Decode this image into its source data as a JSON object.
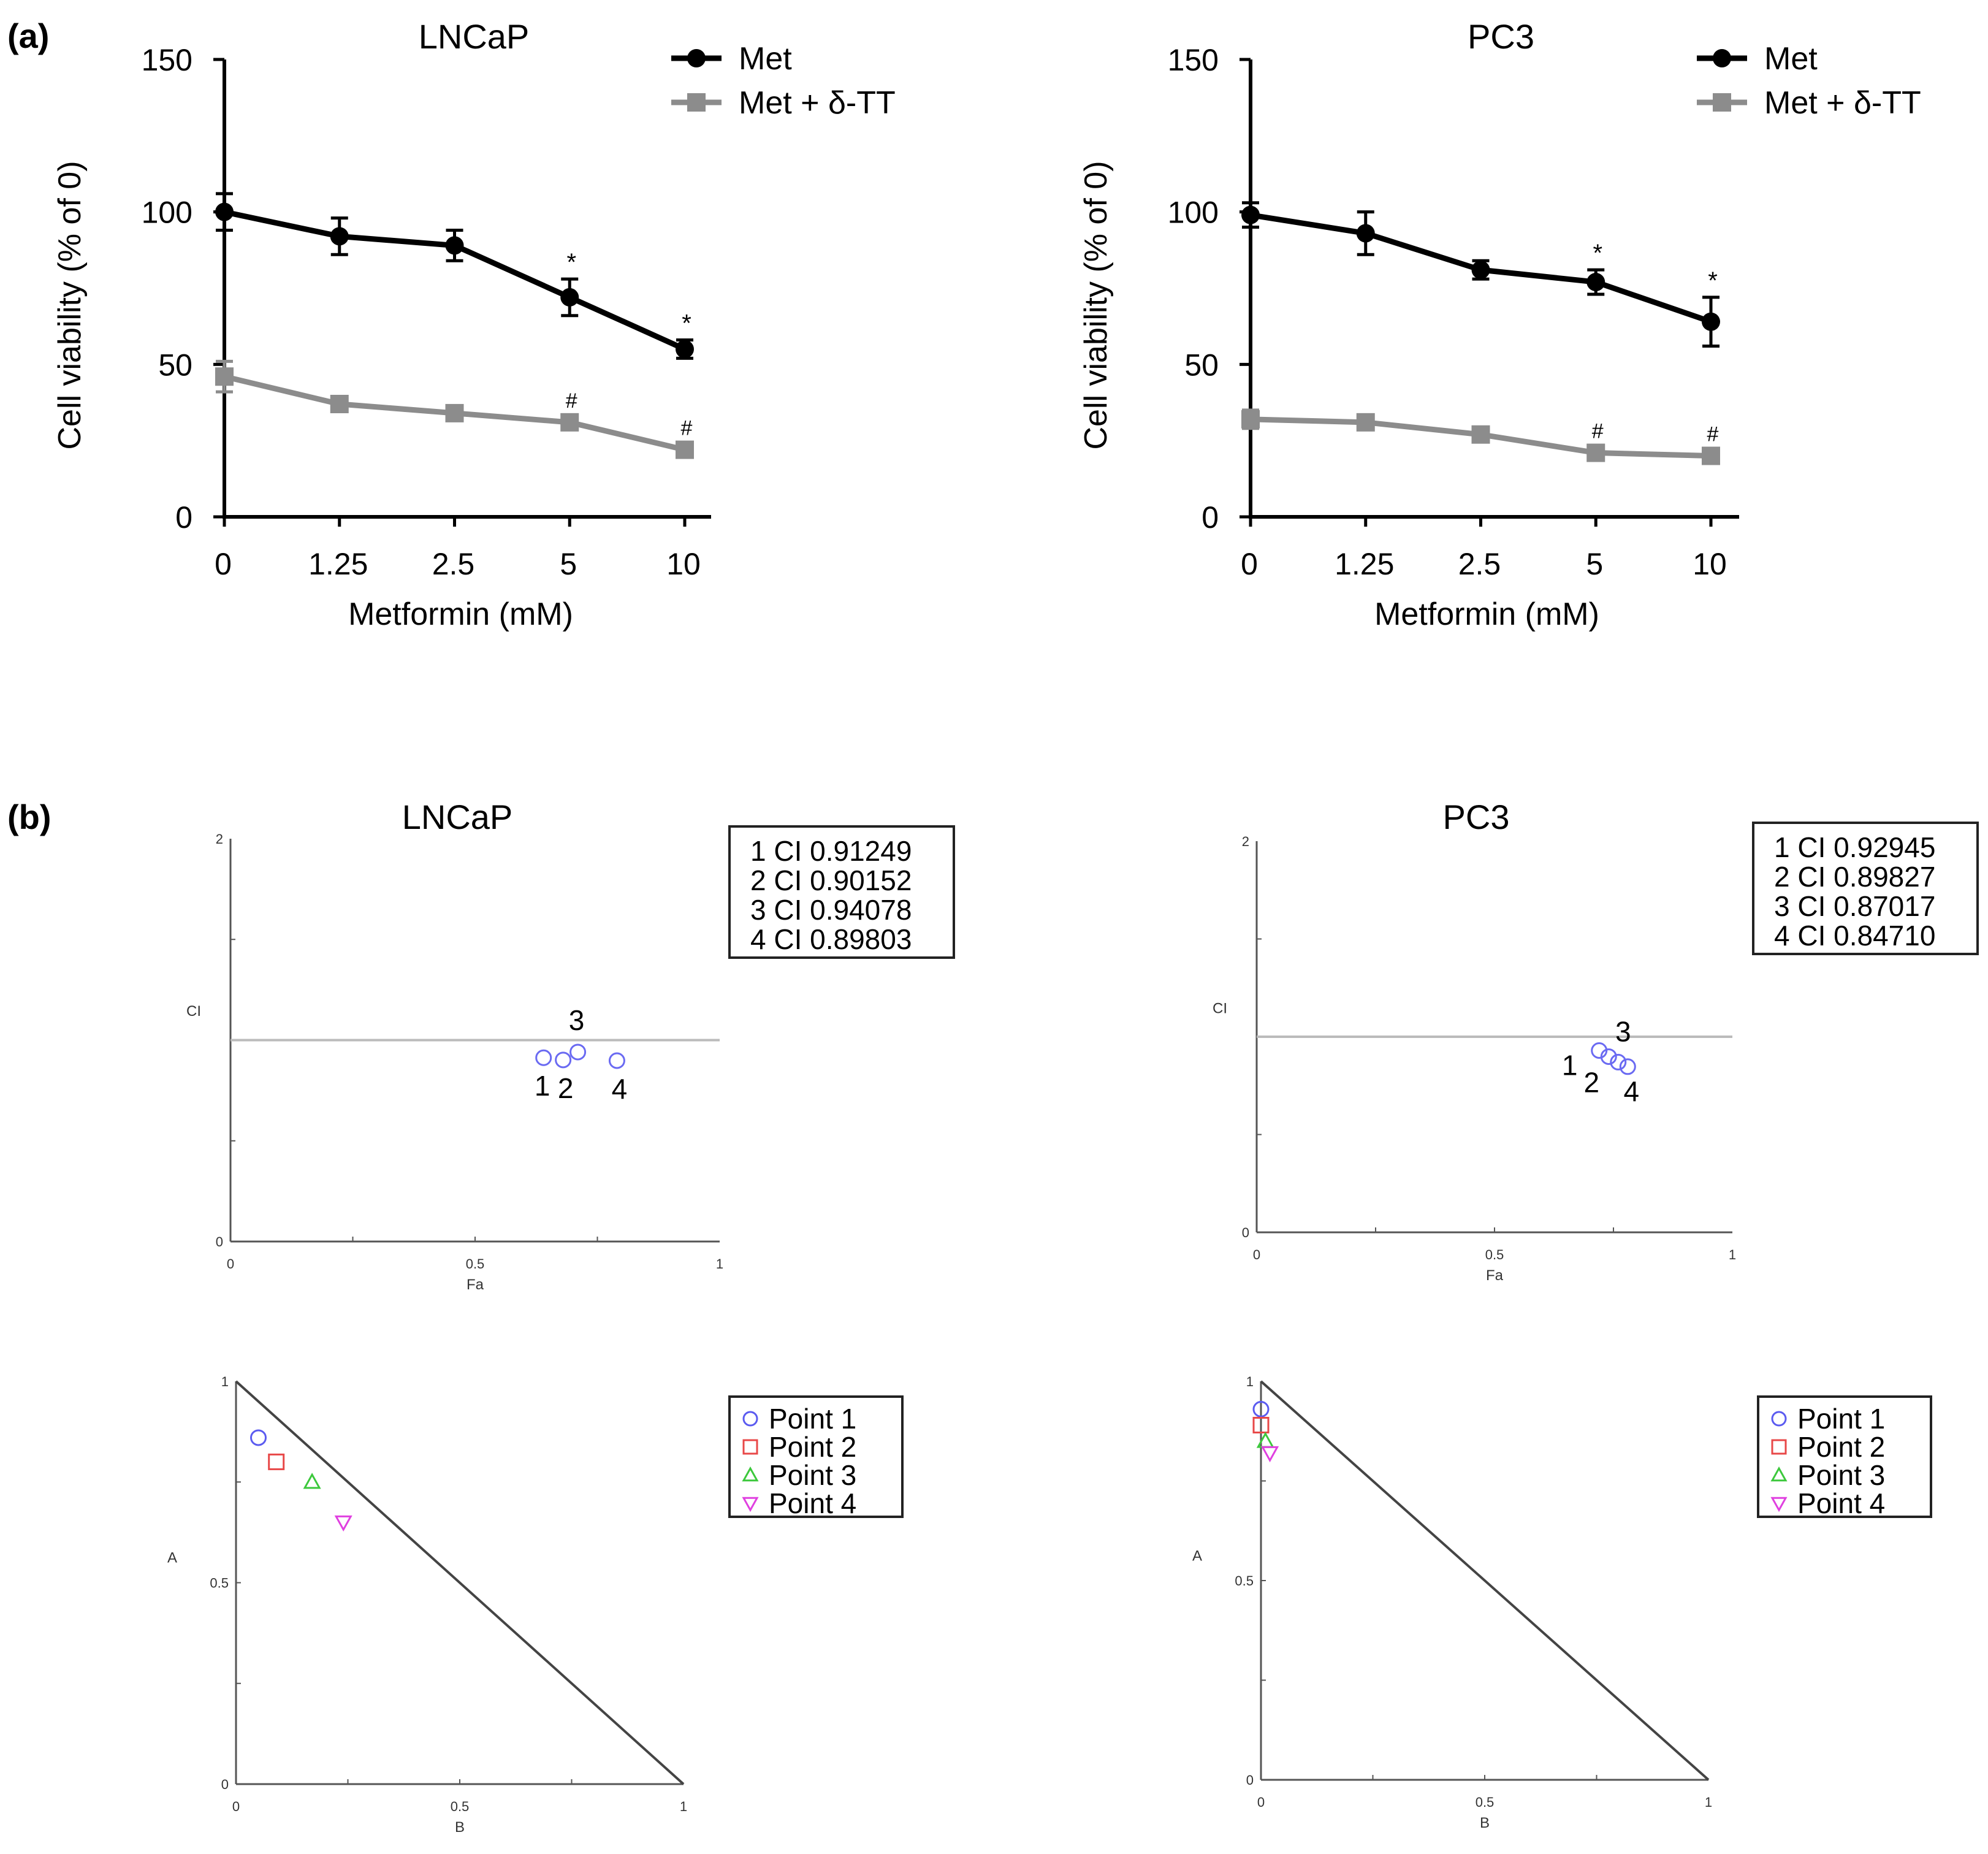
{
  "figure": {
    "panel_a_label": "(a)",
    "panel_b_label": "(b)"
  },
  "chart_data": [
    {
      "id": "a-lncap",
      "type": "line",
      "title": "LNCaP",
      "xlabel": "Metformin (mM)",
      "ylabel": "Cell viability (% of 0)",
      "categories": [
        "0",
        "1.25",
        "2.5",
        "5",
        "10"
      ],
      "ylim": [
        0,
        150
      ],
      "yticks": [
        0,
        50,
        100,
        150
      ],
      "legend_position": "top-right",
      "grid": false,
      "series": [
        {
          "name": "Met",
          "color": "#000000",
          "marker": "circle",
          "values": [
            100,
            92,
            89,
            72,
            55
          ],
          "errors": [
            6,
            6,
            5,
            6,
            3
          ],
          "annotations": [
            "",
            "",
            "",
            "*",
            "*"
          ]
        },
        {
          "name": "Met + δ-TT",
          "color": "#8c8c8c",
          "marker": "square",
          "values": [
            46,
            37,
            34,
            31,
            22
          ],
          "errors": [
            5,
            2,
            2,
            2,
            2
          ],
          "annotations": [
            "",
            "",
            "",
            "#",
            "#"
          ]
        }
      ]
    },
    {
      "id": "a-pc3",
      "type": "line",
      "title": "PC3",
      "xlabel": "Metformin (mM)",
      "ylabel": "Cell viability (% of 0)",
      "categories": [
        "0",
        "1.25",
        "2.5",
        "5",
        "10"
      ],
      "ylim": [
        0,
        150
      ],
      "yticks": [
        0,
        50,
        100,
        150
      ],
      "legend_position": "top-right",
      "grid": false,
      "series": [
        {
          "name": "Met",
          "color": "#000000",
          "marker": "circle",
          "values": [
            99,
            93,
            81,
            77,
            64
          ],
          "errors": [
            4,
            7,
            3,
            4,
            8
          ],
          "annotations": [
            "",
            "",
            "",
            "*",
            "*"
          ]
        },
        {
          "name": "Met + δ-TT",
          "color": "#8c8c8c",
          "marker": "square",
          "values": [
            32,
            31,
            27,
            21,
            20
          ],
          "errors": [
            3,
            2,
            2,
            2,
            2
          ],
          "annotations": [
            "",
            "",
            "",
            "#",
            "#"
          ]
        }
      ]
    },
    {
      "id": "b-lncap-ci",
      "type": "scatter",
      "title": "LNCaP",
      "xlabel": "Fa",
      "ylabel": "CI",
      "xlim": [
        0,
        1
      ],
      "ylim": [
        0,
        2
      ],
      "xticks": [
        "0",
        "0.5",
        "1"
      ],
      "yticks": [
        "0",
        "2"
      ],
      "reference_line_y": 1,
      "points": [
        {
          "label": "1",
          "fa": 0.64,
          "ci": 0.91249
        },
        {
          "label": "2",
          "fa": 0.68,
          "ci": 0.90152
        },
        {
          "label": "3",
          "fa": 0.71,
          "ci": 0.94078
        },
        {
          "label": "4",
          "fa": 0.79,
          "ci": 0.89803
        }
      ],
      "legend": [
        "1 CI  0.91249",
        "2 CI  0.90152",
        "3 CI  0.94078",
        "4 CI  0.89803"
      ]
    },
    {
      "id": "b-pc3-ci",
      "type": "scatter",
      "title": "PC3",
      "xlabel": "Fa",
      "ylabel": "CI",
      "xlim": [
        0,
        1
      ],
      "ylim": [
        0,
        2
      ],
      "xticks": [
        "0",
        "0.5",
        "1"
      ],
      "yticks": [
        "0",
        "2"
      ],
      "reference_line_y": 1,
      "points": [
        {
          "label": "1",
          "fa": 0.72,
          "ci": 0.92945
        },
        {
          "label": "2",
          "fa": 0.74,
          "ci": 0.89827
        },
        {
          "label": "3",
          "fa": 0.76,
          "ci": 0.87017
        },
        {
          "label": "4",
          "fa": 0.78,
          "ci": 0.8471
        }
      ],
      "legend": [
        "1 CI  0.92945",
        "2 CI  0.89827",
        "3 CI  0.87017",
        "4 CI  0.84710"
      ]
    },
    {
      "id": "b-lncap-iso",
      "type": "scatter",
      "xlabel": "B",
      "ylabel": "A",
      "xlim": [
        0,
        1
      ],
      "ylim": [
        0,
        1
      ],
      "xticks": [
        "0",
        "0.5",
        "1"
      ],
      "yticks": [
        "0",
        "0.5",
        "1"
      ],
      "points": [
        {
          "name": "Point 1",
          "b": 0.05,
          "a": 0.86,
          "marker": "circle",
          "color": "#5b5bf0"
        },
        {
          "name": "Point 2",
          "b": 0.09,
          "a": 0.8,
          "marker": "square",
          "color": "#e84848"
        },
        {
          "name": "Point 3",
          "b": 0.17,
          "a": 0.75,
          "marker": "triangle-up",
          "color": "#3cc83c"
        },
        {
          "name": "Point 4",
          "b": 0.24,
          "a": 0.65,
          "marker": "triangle-down",
          "color": "#e040e0"
        }
      ]
    },
    {
      "id": "b-pc3-iso",
      "type": "scatter",
      "xlabel": "B",
      "ylabel": "A",
      "xlim": [
        0,
        1
      ],
      "ylim": [
        0,
        1
      ],
      "xticks": [
        "0",
        "0.5",
        "1"
      ],
      "yticks": [
        "0",
        "0.5",
        "1"
      ],
      "points": [
        {
          "name": "Point 1",
          "b": 0.0,
          "a": 0.93,
          "marker": "circle",
          "color": "#5b5bf0"
        },
        {
          "name": "Point 2",
          "b": 0.0,
          "a": 0.89,
          "marker": "square",
          "color": "#e84848"
        },
        {
          "name": "Point 3",
          "b": 0.01,
          "a": 0.85,
          "marker": "triangle-up",
          "color": "#3cc83c"
        },
        {
          "name": "Point 4",
          "b": 0.02,
          "a": 0.82,
          "marker": "triangle-down",
          "color": "#e040e0"
        }
      ]
    }
  ]
}
